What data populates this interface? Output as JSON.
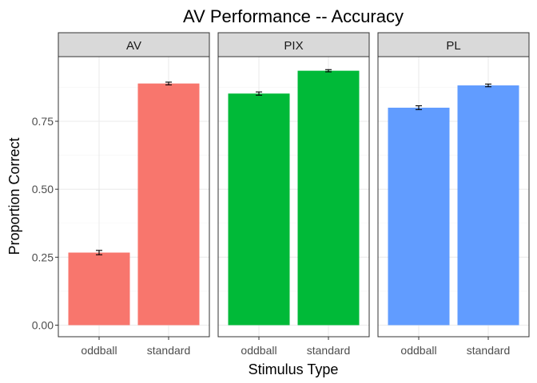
{
  "chart_data": {
    "type": "bar",
    "title": "AV Performance -- Accuracy",
    "xlabel": "Stimulus Type",
    "ylabel": "Proportion Correct",
    "ylim": [
      0,
      0.95
    ],
    "yticks": [
      0.0,
      0.25,
      0.5,
      0.75
    ],
    "ytick_labels": [
      "0.00",
      "0.25",
      "0.50",
      "0.75"
    ],
    "categories": [
      "oddball",
      "standard"
    ],
    "grid": true,
    "legend": "none",
    "facets": [
      {
        "name": "AV",
        "color": "#F8766D",
        "values": [
          0.267,
          0.889
        ],
        "errors": [
          0.008,
          0.005
        ]
      },
      {
        "name": "PIX",
        "color": "#00BA38",
        "values": [
          0.852,
          0.936
        ],
        "errors": [
          0.006,
          0.004
        ]
      },
      {
        "name": "PL",
        "color": "#619CFF",
        "values": [
          0.8,
          0.882
        ],
        "errors": [
          0.007,
          0.005
        ]
      }
    ]
  }
}
